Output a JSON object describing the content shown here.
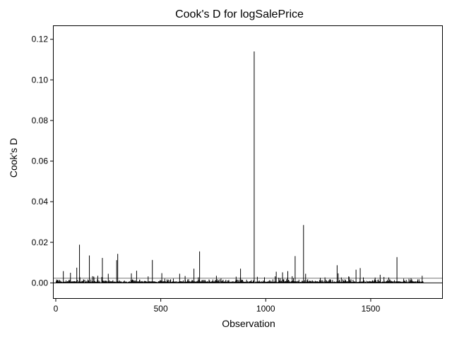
{
  "chart_data": {
    "type": "needle",
    "title": "Cook's D for logSalePrice",
    "xlabel": "Observation",
    "ylabel": "Cook's D",
    "xlim": [
      -10,
      1840
    ],
    "ylim": [
      -0.0075,
      0.1265
    ],
    "x_ticks": [
      0,
      500,
      1000,
      1500
    ],
    "y_ticks": [
      0.0,
      0.02,
      0.04,
      0.06,
      0.08,
      0.1,
      0.12
    ],
    "y_tick_labels": [
      "0.00",
      "0.02",
      "0.04",
      "0.06",
      "0.08",
      "0.10",
      "0.12"
    ],
    "reference_lines": [
      0.0,
      0.0023
    ],
    "n_observations": 1750,
    "prominent_points": [
      {
        "x": 945,
        "y": 0.114
      },
      {
        "x": 1180,
        "y": 0.0285
      },
      {
        "x": 113,
        "y": 0.0188
      },
      {
        "x": 685,
        "y": 0.0155
      },
      {
        "x": 295,
        "y": 0.0143
      },
      {
        "x": 160,
        "y": 0.0135
      },
      {
        "x": 1140,
        "y": 0.0132
      },
      {
        "x": 1625,
        "y": 0.0127
      },
      {
        "x": 222,
        "y": 0.0123
      },
      {
        "x": 460,
        "y": 0.0113
      },
      {
        "x": 290,
        "y": 0.0112
      },
      {
        "x": 1340,
        "y": 0.0087
      },
      {
        "x": 100,
        "y": 0.0075
      },
      {
        "x": 1450,
        "y": 0.0073
      },
      {
        "x": 658,
        "y": 0.007
      },
      {
        "x": 880,
        "y": 0.007
      },
      {
        "x": 1430,
        "y": 0.0065
      },
      {
        "x": 385,
        "y": 0.006
      },
      {
        "x": 1105,
        "y": 0.0058
      },
      {
        "x": 36,
        "y": 0.0058
      },
      {
        "x": 1050,
        "y": 0.0055
      },
      {
        "x": 1080,
        "y": 0.0052
      },
      {
        "x": 70,
        "y": 0.005
      },
      {
        "x": 505,
        "y": 0.0048
      },
      {
        "x": 1345,
        "y": 0.0047
      },
      {
        "x": 360,
        "y": 0.0047
      },
      {
        "x": 590,
        "y": 0.0045
      },
      {
        "x": 1190,
        "y": 0.0045
      },
      {
        "x": 250,
        "y": 0.0045
      },
      {
        "x": 1545,
        "y": 0.004
      },
      {
        "x": 1745,
        "y": 0.0035
      },
      {
        "x": 200,
        "y": 0.0035
      },
      {
        "x": 765,
        "y": 0.0035
      },
      {
        "x": 1395,
        "y": 0.0032
      },
      {
        "x": 960,
        "y": 0.003
      },
      {
        "x": 1260,
        "y": 0.0025
      }
    ]
  }
}
